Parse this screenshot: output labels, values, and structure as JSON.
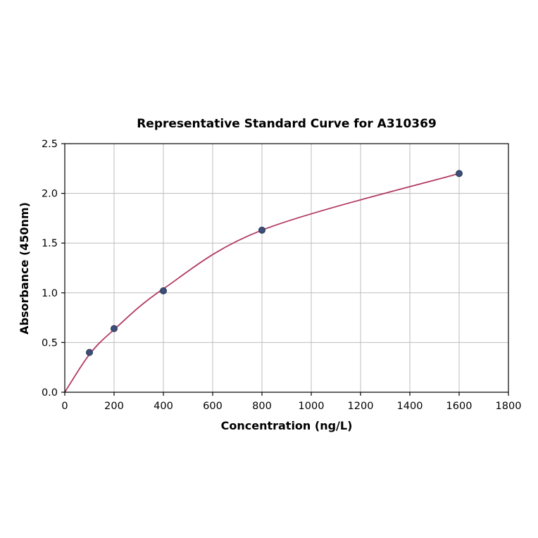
{
  "chart_data": {
    "type": "scatter",
    "title": "Representative Standard Curve for A310369",
    "xlabel": "Concentration (ng/L)",
    "ylabel": "Absorbance (450nm)",
    "xlim": [
      0,
      1800
    ],
    "ylim": [
      0,
      2.5
    ],
    "x_ticks": [
      0,
      200,
      400,
      600,
      800,
      1000,
      1200,
      1400,
      1600,
      1800
    ],
    "x_tick_labels": [
      "0",
      "200",
      "400",
      "600",
      "800",
      "1000",
      "1200",
      "1400",
      "1600",
      "1800"
    ],
    "y_ticks": [
      0,
      0.5,
      1.0,
      1.5,
      2.0,
      2.5
    ],
    "y_tick_labels": [
      "0.0",
      "0.5",
      "1.0",
      "1.5",
      "2.0",
      "2.5"
    ],
    "grid": true,
    "legend": "none",
    "series": [
      {
        "name": "standards",
        "style": "points",
        "x": [
          100,
          200,
          400,
          800,
          1600
        ],
        "y": [
          0.4,
          0.64,
          1.02,
          1.63,
          2.2
        ]
      },
      {
        "name": "fitted-curve",
        "style": "smooth-line",
        "x": [
          0,
          100,
          200,
          400,
          800,
          1600
        ],
        "y": [
          0.0,
          0.38,
          0.63,
          1.04,
          1.63,
          2.2
        ]
      }
    ],
    "colors": {
      "curve": "#b23a63",
      "point_fill": "#3d4e77",
      "point_edge": "#2a3757",
      "grid": "#bdbdbd",
      "frame": "#000000",
      "background": "#ffffff"
    }
  }
}
